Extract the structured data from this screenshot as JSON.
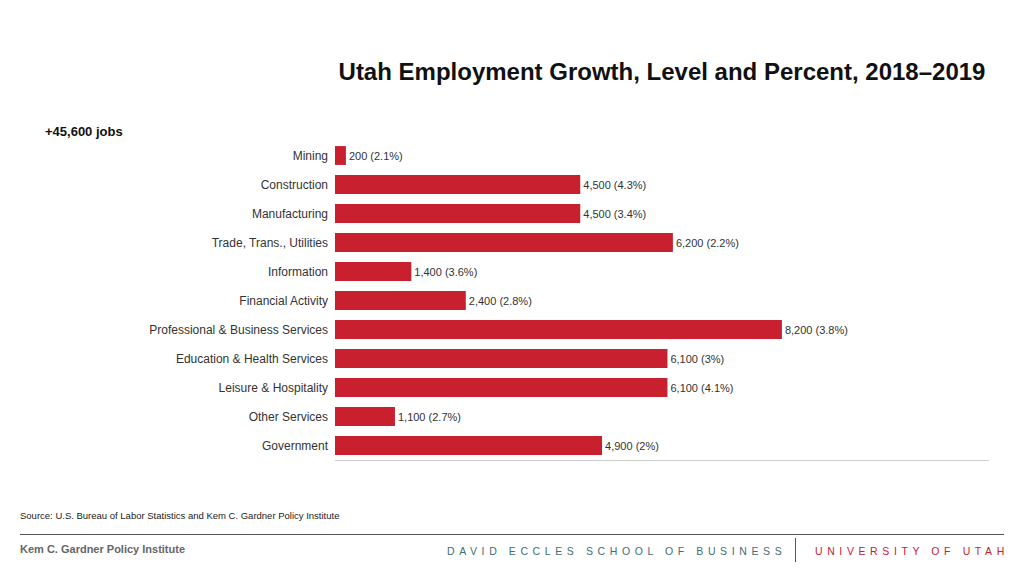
{
  "chart_data": {
    "type": "bar",
    "orientation": "horizontal",
    "title": "Utah Employment Growth, Level and Percent, 2018–2019",
    "subtitle": "+45,600 jobs",
    "categories": [
      "Mining",
      "Construction",
      "Manufacturing",
      "Trade, Trans., Utilities",
      "Information",
      "Financial Activity",
      "Professional & Business Services",
      "Education & Health Services",
      "Leisure & Hospitality",
      "Other Services",
      "Government"
    ],
    "values": [
      200,
      4500,
      4500,
      6200,
      1400,
      2400,
      8200,
      6100,
      6100,
      1100,
      4900
    ],
    "value_labels": [
      "200 (2.1%)",
      "4,500 (4.3%)",
      "4,500 (3.4%)",
      "6,200 (2.2%)",
      "1,400 (3.6%)",
      "2,400 (2.8%)",
      "8,200 (3.8%)",
      "6,100 (3%)",
      "6,100 (4.1%)",
      "1,100 (2.7%)",
      "4,900 (2%)"
    ],
    "color": "#c8202f",
    "xlim": [
      0,
      12000
    ],
    "grid": false,
    "data_labels": true,
    "tick_labels": "y",
    "annotations": [
      "Source: U.S. Bureau of Labor Statistics and Kem C. Gardner Policy Institute"
    ]
  },
  "footer": {
    "left": "Kem C. Gardner Policy Institute",
    "center": "DAVID ECCLES SCHOOL OF BUSINESS",
    "right": "UNIVERSITY OF UTAH"
  }
}
